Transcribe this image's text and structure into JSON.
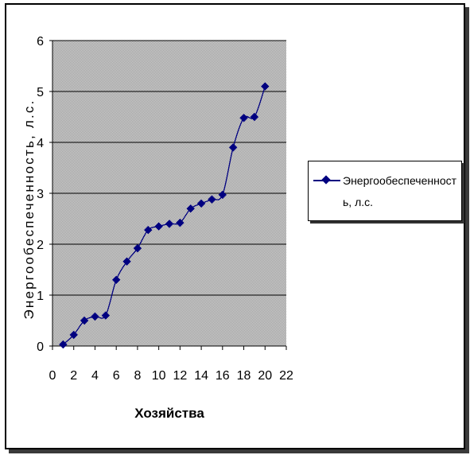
{
  "chart_data": {
    "type": "line",
    "title": "",
    "xlabel": "Хозяйства",
    "ylabel": "Энергообеспеченность, л.с.",
    "xlim": [
      0,
      22
    ],
    "ylim": [
      0,
      6
    ],
    "x_ticks": [
      "0",
      "2",
      "4",
      "6",
      "8",
      "10",
      "12",
      "14",
      "16",
      "18",
      "20",
      "22"
    ],
    "y_ticks": [
      "0",
      "1",
      "2",
      "3",
      "4",
      "5",
      "6"
    ],
    "grid": true,
    "legend_position": "right",
    "plot_background": "#c0c0c0",
    "series_color": "#000080",
    "series": [
      {
        "name": "Энергообеспеченность, л.с.",
        "x": [
          1,
          2,
          3,
          4,
          5,
          6,
          7,
          8,
          9,
          10,
          11,
          12,
          13,
          14,
          15,
          16,
          17,
          18,
          19,
          20
        ],
        "values": [
          0.03,
          0.22,
          0.5,
          0.58,
          0.6,
          1.3,
          1.66,
          1.92,
          2.28,
          2.35,
          2.4,
          2.42,
          2.7,
          2.8,
          2.88,
          2.97,
          3.9,
          4.48,
          4.5,
          5.1
        ]
      }
    ]
  }
}
